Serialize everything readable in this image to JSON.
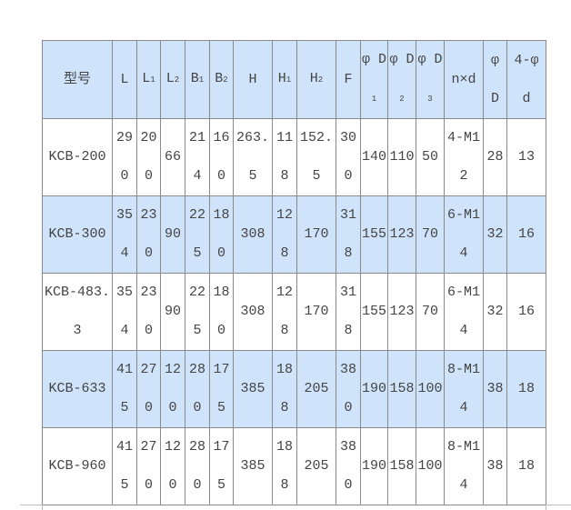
{
  "header_color": "#cfe3fb",
  "columns": [
    {
      "main": "型号",
      "sub": ""
    },
    {
      "main": "L",
      "sub": ""
    },
    {
      "main": "L",
      "sub": "1"
    },
    {
      "main": "L",
      "sub": "2"
    },
    {
      "main": "B",
      "sub": "1"
    },
    {
      "main": "B",
      "sub": "2"
    },
    {
      "main": "H",
      "sub": ""
    },
    {
      "main": "H",
      "sub": "1"
    },
    {
      "main": "H",
      "sub": "2"
    },
    {
      "main": "F",
      "sub": ""
    },
    {
      "main": "φ D",
      "sub": "1"
    },
    {
      "main": "φ D",
      "sub": "2"
    },
    {
      "main": "φ D",
      "sub": "3"
    },
    {
      "main": "n×d",
      "sub": ""
    },
    {
      "main": "φ D",
      "sub": ""
    },
    {
      "main": "4-φ d",
      "sub": ""
    }
  ],
  "rows": [
    [
      "KCB-200",
      "290",
      "200",
      "66",
      "214",
      "160",
      "263.5",
      "118",
      "152.5",
      "300",
      "140",
      "110",
      "50",
      "4-M12",
      "28",
      "13"
    ],
    [
      "KCB-300",
      "354",
      "230",
      "90",
      "225",
      "180",
      "308",
      "128",
      "170",
      "318",
      "155",
      "123",
      "70",
      "6-M14",
      "32",
      "16"
    ],
    [
      "KCB-483.3",
      "354",
      "230",
      "90",
      "225",
      "180",
      "308",
      "128",
      "170",
      "318",
      "155",
      "123",
      "70",
      "6-M14",
      "32",
      "16"
    ],
    [
      "KCB-633",
      "415",
      "270",
      "120",
      "280",
      "175",
      "385",
      "188",
      "205",
      "380",
      "190",
      "158",
      "100",
      "8-M14",
      "38",
      "18"
    ],
    [
      "KCB-960",
      "415",
      "270",
      "120",
      "280",
      "175",
      "385",
      "188",
      "205",
      "380",
      "190",
      "158",
      "100",
      "8-M14",
      "38",
      "18"
    ]
  ]
}
